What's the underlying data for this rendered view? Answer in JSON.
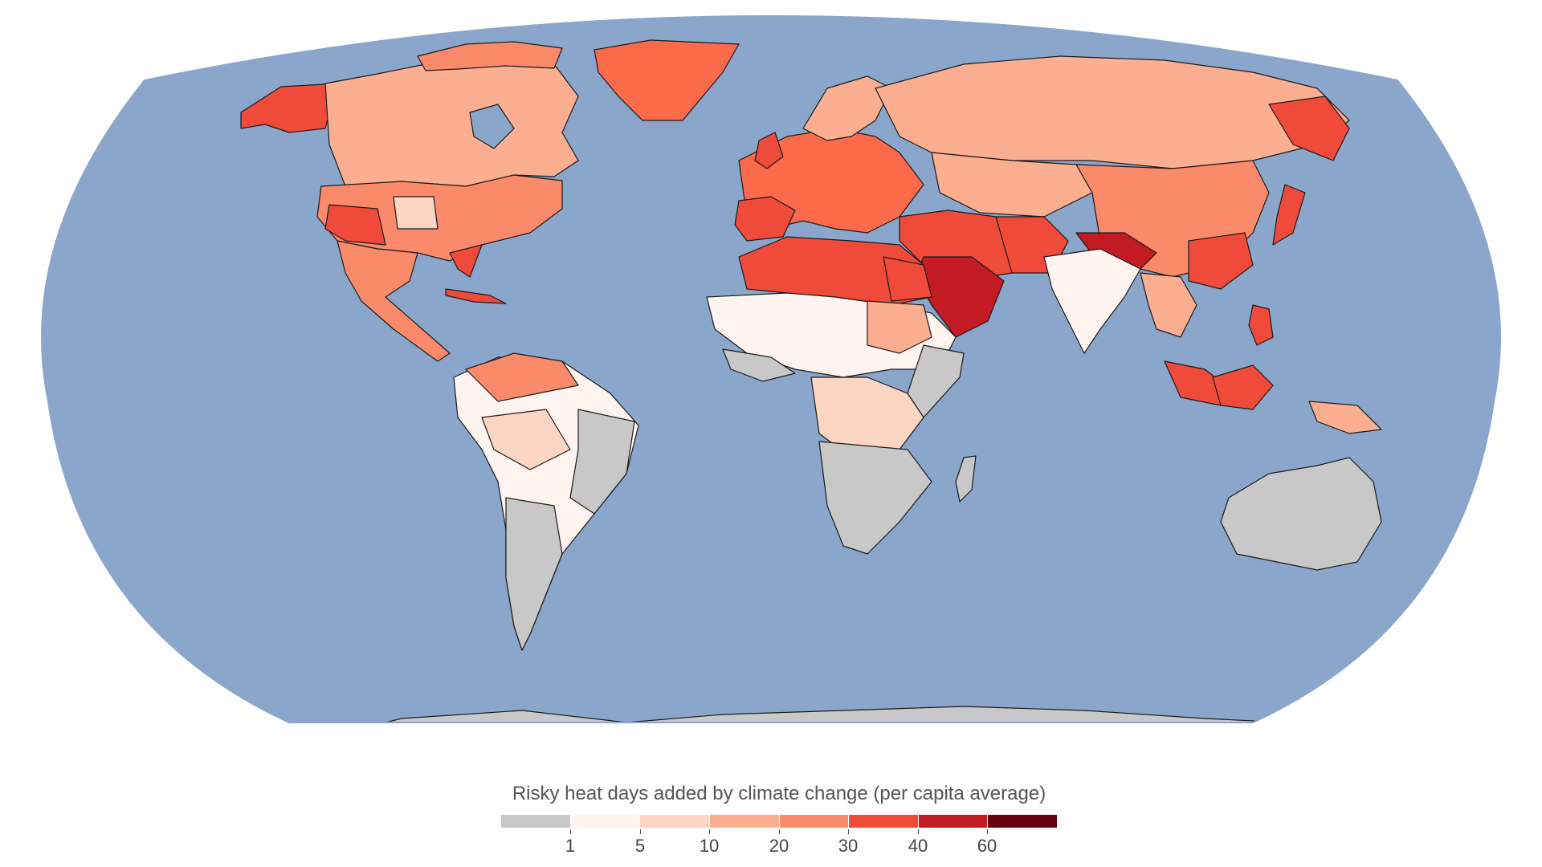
{
  "legend": {
    "title": "Risky heat days added by climate change (per capita average)",
    "bins": [
      {
        "color": "#c8c8c8"
      },
      {
        "color": "#fff4ef"
      },
      {
        "color": "#fdd5c3"
      },
      {
        "color": "#fcae91"
      },
      {
        "color": "#fb8a6a"
      },
      {
        "color": "#ef4a3a"
      },
      {
        "color": "#c31b24"
      },
      {
        "color": "#67000d"
      }
    ],
    "tick_labels": [
      "1",
      "5",
      "10",
      "20",
      "30",
      "40",
      "60"
    ]
  },
  "colors": {
    "ocean": "#8aa6cb",
    "border": "#1a1a1a",
    "no_change": "#c8c8c8"
  }
}
